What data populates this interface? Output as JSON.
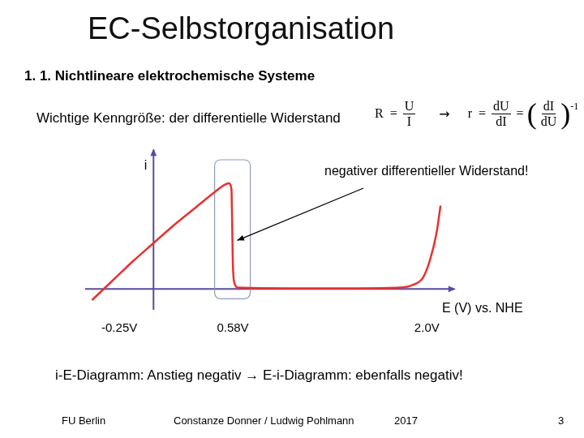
{
  "slide": {
    "title": "EC-Selbstorganisation",
    "heading": "1. 1. Nichtlineare elektrochemische Systeme",
    "intro": "Wichtige Kenngröße: der differentielle Widerstand",
    "formula": {
      "R": "R",
      "U": "U",
      "I": "I",
      "arrow": "→",
      "r": "r",
      "dU": "dU",
      "dI": "dI",
      "eq": "=",
      "exponent": "-1"
    },
    "caption": "i-E-Diagramm: Anstieg negativ → E-i-Diagramm: ebenfalls negativ!",
    "footer": {
      "left": "FU Berlin",
      "center": "Constanze Donner / Ludwig Pohlmann",
      "year": "2017",
      "page": "3"
    }
  },
  "chart_data": {
    "type": "line",
    "x_label": "E (V) vs. NHE",
    "y_label": "i",
    "annotations": [
      "negativer differentieller Widerstand!"
    ],
    "x": [
      -0.45,
      -0.3,
      -0.15,
      0,
      0.15,
      0.3,
      0.45,
      0.52,
      0.55,
      0.57,
      0.575,
      0.58,
      0.59,
      0.62,
      1.0,
      1.5,
      1.8,
      1.9,
      1.97,
      2.02,
      2.07,
      2.1
    ],
    "values": [
      -0.08,
      0.06,
      0.2,
      0.33,
      0.46,
      0.58,
      0.7,
      0.75,
      0.76,
      0.72,
      0.5,
      0.2,
      0.05,
      0.01,
      0.005,
      0.005,
      0.01,
      0.03,
      0.08,
      0.2,
      0.4,
      0.6
    ],
    "color": "#e8312f",
    "xlim": [
      -0.5,
      2.2
    ],
    "xticks": [
      {
        "value": -0.25,
        "label": "-0.25V"
      },
      {
        "value": 0.58,
        "label": "0.58V"
      },
      {
        "value": 2.0,
        "label": "2.0V"
      }
    ],
    "ylim": [
      -0.15,
      1.0
    ],
    "grid": false,
    "tick_labels": "x"
  }
}
